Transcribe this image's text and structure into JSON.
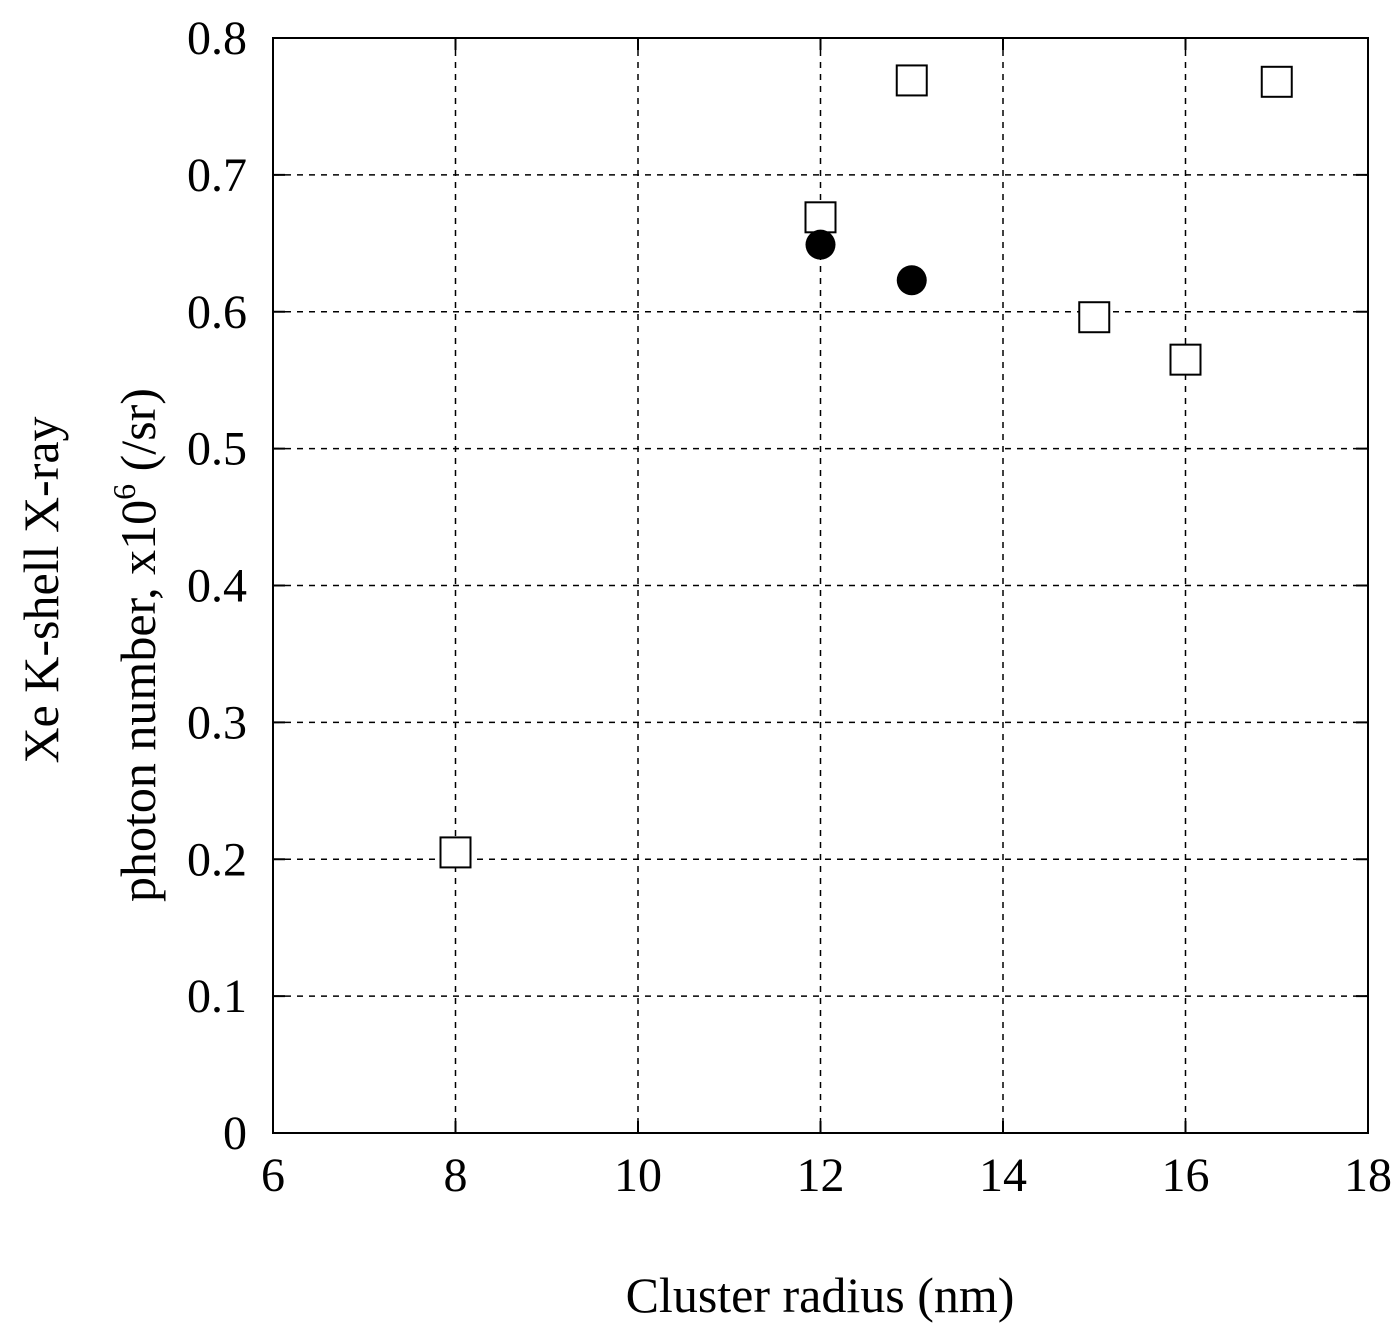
{
  "chart_data": {
    "type": "scatter",
    "title": "",
    "xlabel": "Cluster radius (nm)",
    "ylabel_line1": "Xe K-shell X-ray",
    "ylabel_line2_prefix": "photon number, x10",
    "ylabel_line2_exponent": "6",
    "ylabel_line2_suffix": " (/sr)",
    "xlim": [
      6,
      18
    ],
    "ylim": [
      0,
      0.8
    ],
    "x_ticks": [
      6,
      8,
      10,
      12,
      14,
      16,
      18
    ],
    "x_tick_labels": [
      "6",
      "8",
      "10",
      "12",
      "14",
      "16",
      "18"
    ],
    "y_ticks": [
      0,
      0.1,
      0.2,
      0.3,
      0.4,
      0.5,
      0.6,
      0.7,
      0.8
    ],
    "y_tick_labels": [
      "0",
      "0.1",
      "0.2",
      "0.3",
      "0.4",
      "0.5",
      "0.6",
      "0.7",
      "0.8"
    ],
    "grid": true,
    "legend": "none",
    "series": [
      {
        "name": "open squares",
        "marker": "square-open",
        "color": "#000000",
        "points": [
          {
            "x": 8,
            "y": 0.205
          },
          {
            "x": 12,
            "y": 0.669
          },
          {
            "x": 13,
            "y": 0.769
          },
          {
            "x": 15,
            "y": 0.596
          },
          {
            "x": 16,
            "y": 0.565
          },
          {
            "x": 17,
            "y": 0.768
          }
        ]
      },
      {
        "name": "filled circles",
        "marker": "circle-filled",
        "color": "#000000",
        "points": [
          {
            "x": 12,
            "y": 0.649
          },
          {
            "x": 13,
            "y": 0.623
          }
        ]
      }
    ]
  }
}
